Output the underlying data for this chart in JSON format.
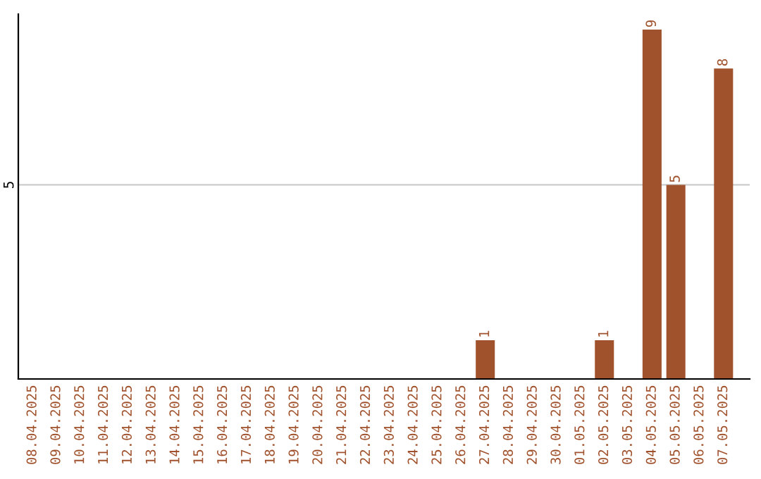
{
  "chart_data": {
    "type": "bar",
    "ylim": [
      0,
      9.4
    ],
    "categories": [
      "08.04.2025",
      "09.04.2025",
      "10.04.2025",
      "11.04.2025",
      "12.04.2025",
      "13.04.2025",
      "14.04.2025",
      "15.04.2025",
      "16.04.2025",
      "17.04.2025",
      "18.04.2025",
      "19.04.2025",
      "20.04.2025",
      "21.04.2025",
      "22.04.2025",
      "23.04.2025",
      "24.04.2025",
      "25.04.2025",
      "26.04.2025",
      "27.04.2025",
      "28.04.2025",
      "29.04.2025",
      "30.04.2025",
      "01.05.2025",
      "02.05.2025",
      "03.05.2025",
      "04.05.2025",
      "05.05.2025",
      "06.05.2025",
      "07.05.2025"
    ],
    "values": [
      null,
      null,
      null,
      null,
      null,
      null,
      null,
      null,
      null,
      null,
      null,
      null,
      null,
      null,
      null,
      null,
      null,
      null,
      null,
      1,
      null,
      null,
      null,
      null,
      1,
      null,
      9,
      5,
      null,
      8
    ],
    "value_labels": [
      null,
      null,
      null,
      null,
      null,
      null,
      null,
      null,
      null,
      null,
      null,
      null,
      null,
      null,
      null,
      null,
      null,
      null,
      null,
      "1",
      null,
      null,
      null,
      null,
      "1",
      null,
      "9",
      "5",
      null,
      "8"
    ],
    "color": "#a0522d",
    "yticks": [
      5
    ],
    "grid": "y"
  }
}
